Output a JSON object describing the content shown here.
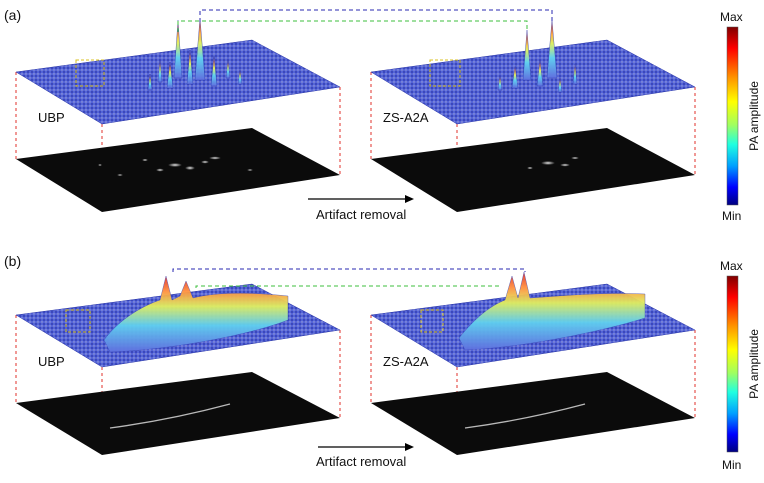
{
  "panels": [
    {
      "label": "(a)",
      "method_left": "UBP",
      "method_right": "ZS-A2A",
      "arrow_label": "Artifact removal",
      "peak_profile": "sharp"
    },
    {
      "label": "(b)",
      "method_left": "UBP",
      "method_right": "ZS-A2A",
      "arrow_label": "Artifact removal",
      "peak_profile": "broad"
    }
  ],
  "colorbars": [
    {
      "max_label": "Max",
      "min_label": "Min",
      "axis_label": "PA amplitude"
    },
    {
      "max_label": "Max",
      "min_label": "Min",
      "axis_label": "PA amplitude"
    }
  ],
  "colors": {
    "guide_red": "#e0302b",
    "connector_blue": "#2a2ab0",
    "connector_green": "#3cbf3c",
    "roi_yellow": "#d8c020",
    "surface_base": "#5060d8",
    "image_bg": "#0b0b0b"
  },
  "colormap": [
    "#00007f",
    "#0000ff",
    "#00a0ff",
    "#20ffe0",
    "#a0ff60",
    "#ffff00",
    "#ff9000",
    "#ff0000",
    "#7f0000"
  ]
}
